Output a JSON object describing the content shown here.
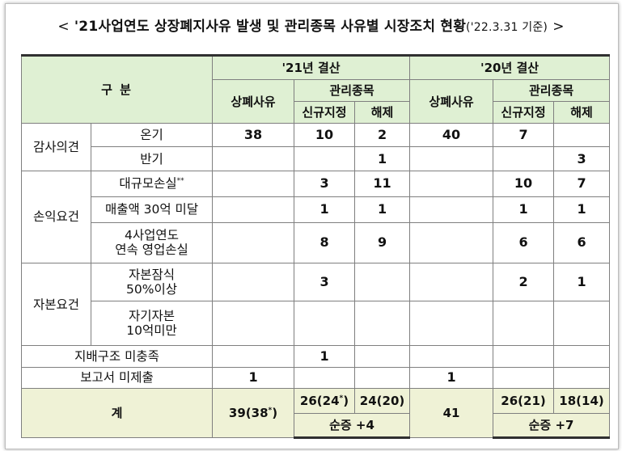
{
  "title": {
    "open": "<",
    "main": "'21사업연도 상장폐지사유 발생 및 관리종목 사유별 시장조치 현황",
    "basis": "('22.3.31 기준)",
    "close": ">"
  },
  "header": {
    "category": "구   분",
    "year21": "'21년 결산",
    "year20": "'20년 결산",
    "delisting": "상폐사유",
    "managed": "관리종목",
    "new_designation": "신규지정",
    "release": "해제"
  },
  "rows": {
    "audit_group": "감사의견",
    "audit_on": {
      "label": "온기",
      "d21": "38",
      "n21": "10",
      "r21": "2",
      "d20": "40",
      "n20": "7",
      "r20": ""
    },
    "audit_half": {
      "label": "반기",
      "d21": "",
      "n21": "",
      "r21": "1",
      "d20": "",
      "n20": "",
      "r20": "3"
    },
    "pl_group": "손익요건",
    "pl_loss": {
      "label": "대규모손실",
      "mark": "**",
      "d21": "",
      "n21": "3",
      "r21": "11",
      "d20": "",
      "n20": "10",
      "r20": "7"
    },
    "pl_sales": {
      "label": "매출액 30억 미달",
      "d21": "",
      "n21": "1",
      "r21": "1",
      "d20": "",
      "n20": "1",
      "r20": "1"
    },
    "pl_oper": {
      "label1": "4사업연도",
      "label2": "연속 영업손실",
      "d21": "",
      "n21": "8",
      "r21": "9",
      "d20": "",
      "n20": "6",
      "r20": "6"
    },
    "cap_group": "자본요건",
    "cap_erosion": {
      "label1": "자본잠식",
      "label2": "50%이상",
      "d21": "",
      "n21": "3",
      "r21": "",
      "d20": "",
      "n20": "2",
      "r20": "1"
    },
    "cap_equity": {
      "label1": "자기자본",
      "label2": "10억미만",
      "d21": "",
      "n21": "",
      "r21": "",
      "d20": "",
      "n20": "",
      "r20": ""
    },
    "governance": {
      "label": "지배구조 미충족",
      "d21": "",
      "n21": "1",
      "r21": "",
      "d20": "",
      "n20": "",
      "r20": ""
    },
    "report": {
      "label": "보고서 미제출",
      "d21": "1",
      "n21": "",
      "r21": "",
      "d20": "1",
      "n20": "",
      "r20": ""
    }
  },
  "total": {
    "label": "계",
    "d21": "39(38",
    "d21_mark": "*",
    "d21_close": ")",
    "n21": "26(24",
    "n21_mark": "*",
    "n21_close": ")",
    "r21": "24(20)",
    "net21": "순증 +4",
    "d20": "41",
    "n20": "26(21)",
    "r20": "18(14)",
    "net20": "순증 +7"
  }
}
